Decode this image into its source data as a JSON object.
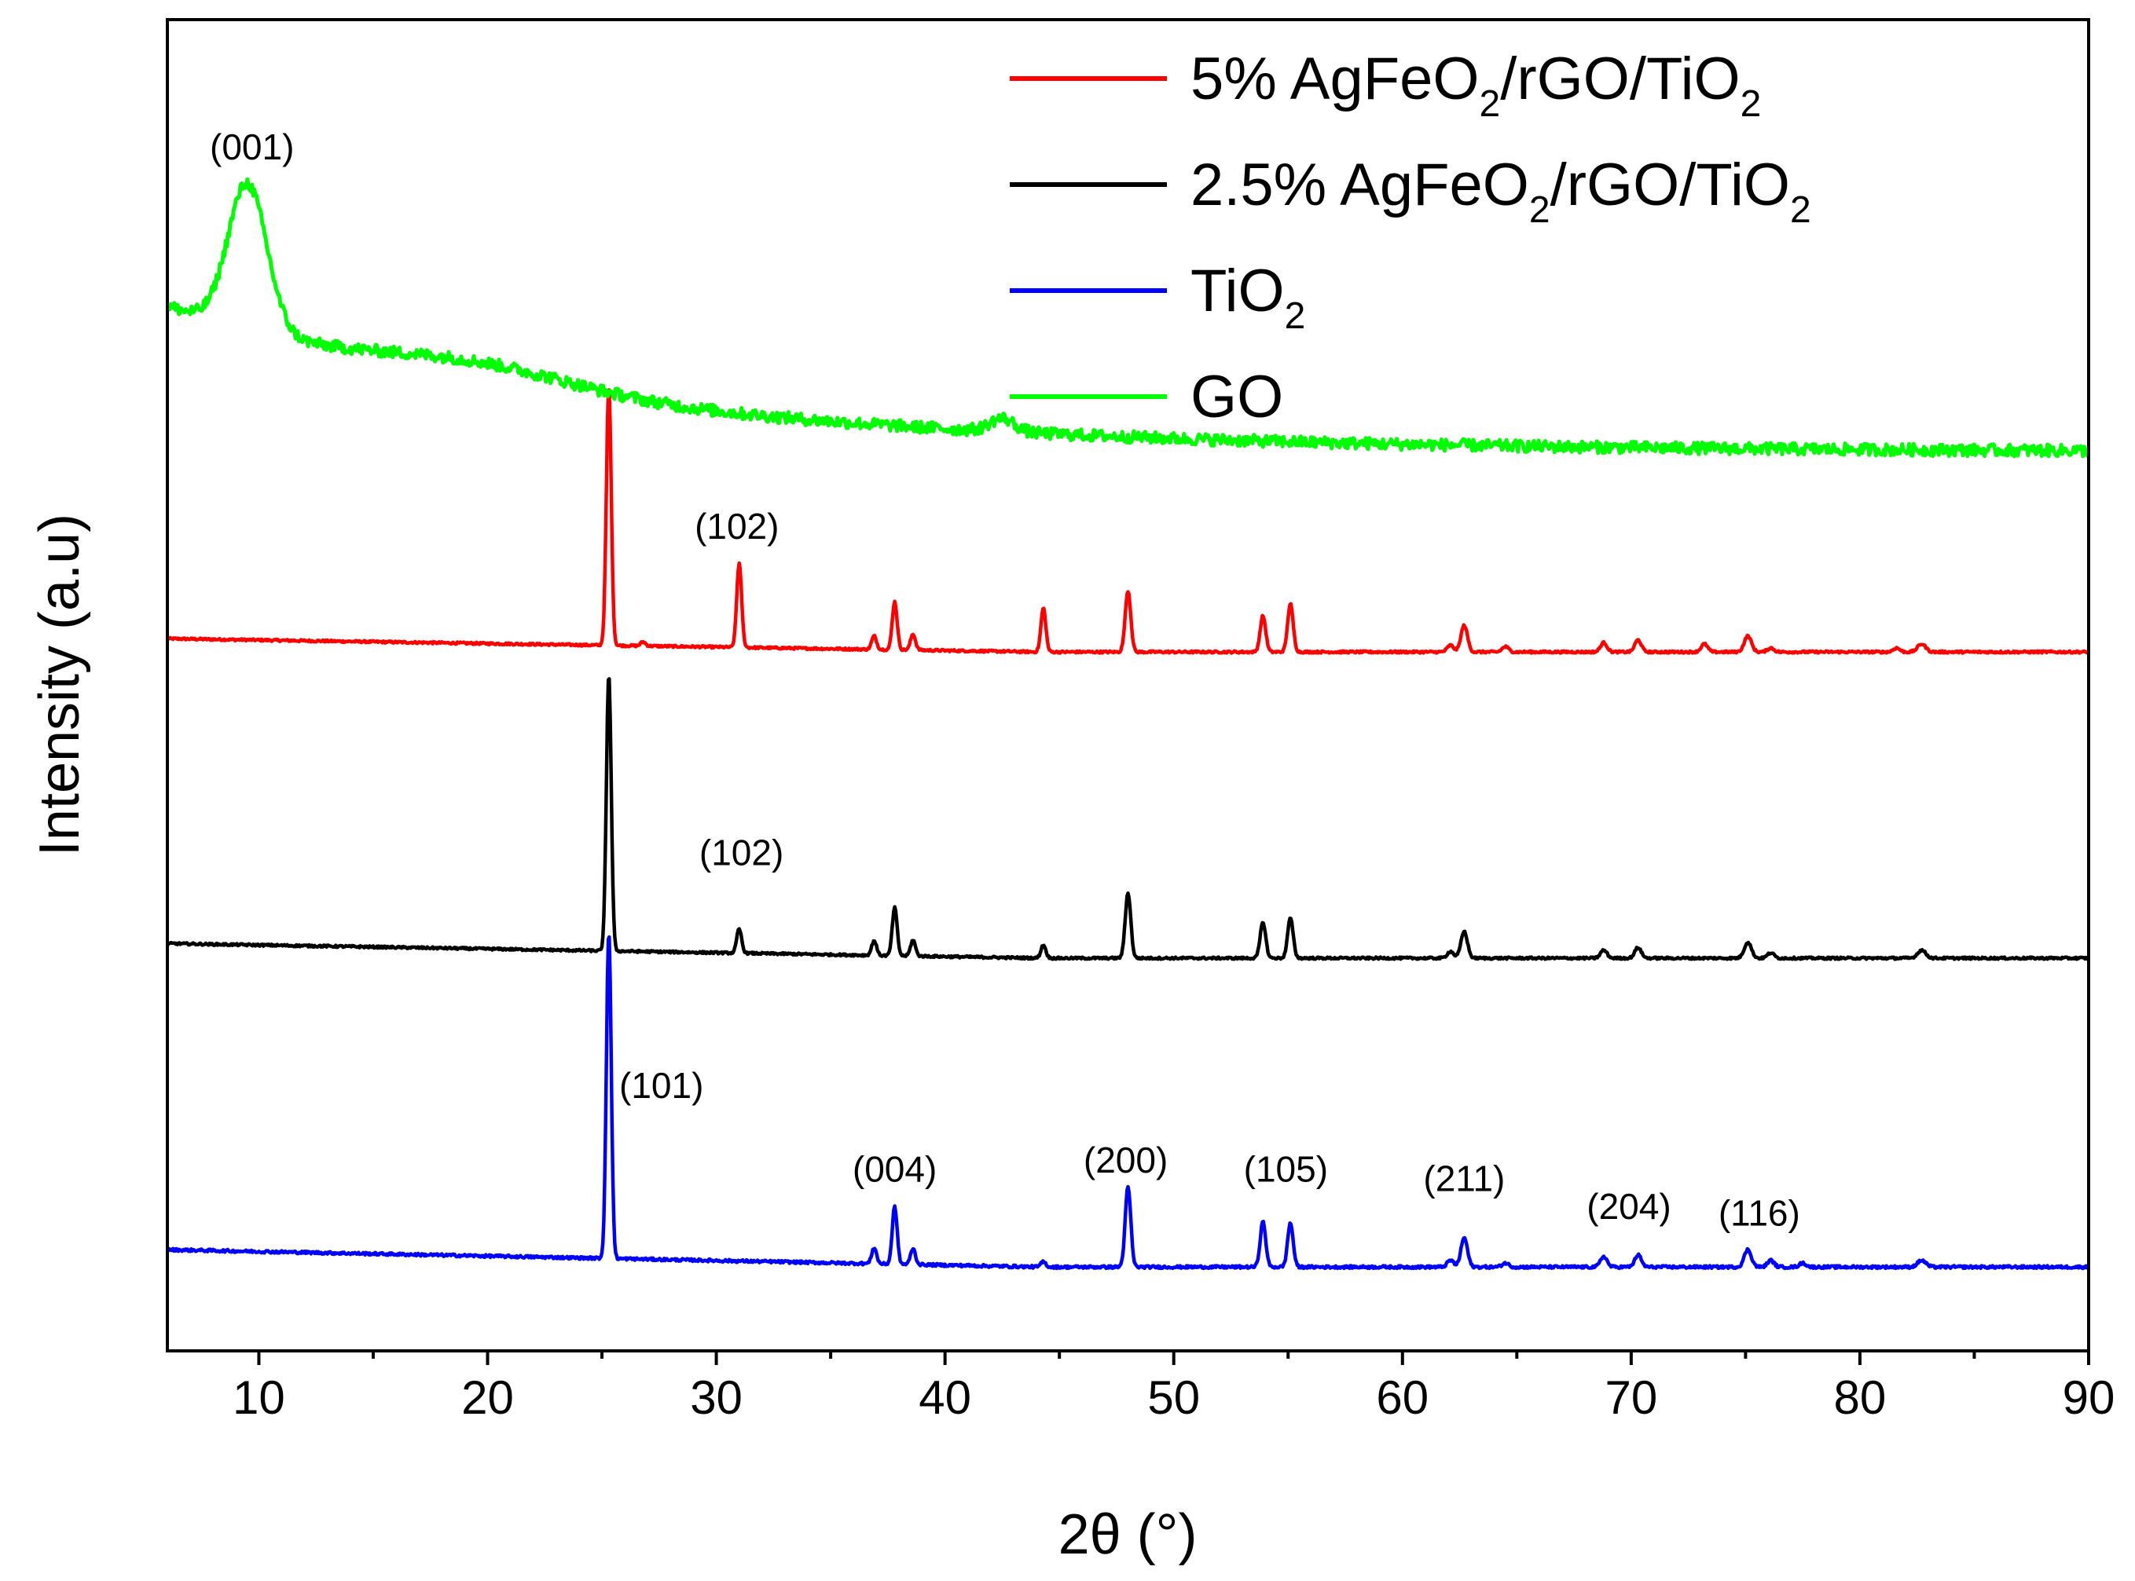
{
  "chart_data": {
    "type": "line",
    "title": "",
    "xlabel": "2θ (°)",
    "ylabel": "Intensity (a.u)",
    "xlim": [
      6,
      90
    ],
    "ylim": [
      0,
      100
    ],
    "xticks": [
      10,
      20,
      30,
      40,
      50,
      60,
      70,
      80,
      90
    ],
    "yticks_shown": false,
    "legend": {
      "position": "top-right"
    },
    "series": [
      {
        "name": "5% AgFeO2/rGO/TiO2",
        "label_parts": [
          "5% AgFeO",
          "2",
          "/rGO/TiO",
          "2"
        ],
        "color": "#ff0000",
        "baseline": 52.5,
        "baseline_start": 53.5,
        "peaks": [
          {
            "x": 25.3,
            "h": 19.5,
            "w": 0.15
          },
          {
            "x": 26.8,
            "h": 0.3,
            "w": 0.15
          },
          {
            "x": 31.0,
            "h": 6.3,
            "w": 0.15
          },
          {
            "x": 36.9,
            "h": 1.0,
            "w": 0.15
          },
          {
            "x": 37.8,
            "h": 3.6,
            "w": 0.15
          },
          {
            "x": 38.6,
            "h": 1.2,
            "w": 0.15
          },
          {
            "x": 44.3,
            "h": 3.3,
            "w": 0.15
          },
          {
            "x": 48.0,
            "h": 4.6,
            "w": 0.17
          },
          {
            "x": 53.9,
            "h": 2.7,
            "w": 0.17
          },
          {
            "x": 55.1,
            "h": 3.6,
            "w": 0.17
          },
          {
            "x": 62.1,
            "h": 0.5,
            "w": 0.2
          },
          {
            "x": 62.7,
            "h": 2.0,
            "w": 0.2
          },
          {
            "x": 64.5,
            "h": 0.4,
            "w": 0.2
          },
          {
            "x": 68.8,
            "h": 0.7,
            "w": 0.2
          },
          {
            "x": 70.3,
            "h": 0.9,
            "w": 0.2
          },
          {
            "x": 73.2,
            "h": 0.6,
            "w": 0.2
          },
          {
            "x": 75.1,
            "h": 1.2,
            "w": 0.22
          },
          {
            "x": 76.1,
            "h": 0.3,
            "w": 0.2
          },
          {
            "x": 81.6,
            "h": 0.3,
            "w": 0.2
          },
          {
            "x": 82.7,
            "h": 0.6,
            "w": 0.25
          }
        ],
        "noise": 0.08
      },
      {
        "name": "2.5% AgFeO2/rGO/TiO2",
        "label_parts": [
          "2.5% AgFeO",
          "2",
          "/rGO/TiO",
          "2"
        ],
        "color": "#000000",
        "baseline": 29.5,
        "baseline_start": 30.6,
        "peaks": [
          {
            "x": 25.3,
            "h": 20.8,
            "w": 0.15
          },
          {
            "x": 31.0,
            "h": 1.8,
            "w": 0.15
          },
          {
            "x": 36.9,
            "h": 1.1,
            "w": 0.15
          },
          {
            "x": 37.8,
            "h": 3.6,
            "w": 0.15
          },
          {
            "x": 38.6,
            "h": 1.2,
            "w": 0.15
          },
          {
            "x": 44.3,
            "h": 1.0,
            "w": 0.15
          },
          {
            "x": 48.0,
            "h": 4.9,
            "w": 0.17
          },
          {
            "x": 53.9,
            "h": 2.7,
            "w": 0.17
          },
          {
            "x": 55.1,
            "h": 3.0,
            "w": 0.17
          },
          {
            "x": 62.1,
            "h": 0.5,
            "w": 0.2
          },
          {
            "x": 62.7,
            "h": 2.0,
            "w": 0.2
          },
          {
            "x": 68.8,
            "h": 0.6,
            "w": 0.2
          },
          {
            "x": 70.3,
            "h": 0.8,
            "w": 0.2
          },
          {
            "x": 75.1,
            "h": 1.2,
            "w": 0.22
          },
          {
            "x": 76.1,
            "h": 0.4,
            "w": 0.2
          },
          {
            "x": 82.7,
            "h": 0.6,
            "w": 0.25
          }
        ],
        "noise": 0.08
      },
      {
        "name": "TiO2",
        "label_parts": [
          "TiO",
          "2",
          "",
          ""
        ],
        "color": "#0000ff",
        "baseline": 6.3,
        "baseline_start": 7.6,
        "peaks": [
          {
            "x": 25.3,
            "h": 24.5,
            "w": 0.15
          },
          {
            "x": 36.9,
            "h": 1.2,
            "w": 0.15
          },
          {
            "x": 37.8,
            "h": 4.3,
            "w": 0.15
          },
          {
            "x": 38.6,
            "h": 1.2,
            "w": 0.15
          },
          {
            "x": 44.3,
            "h": 0.4,
            "w": 0.15
          },
          {
            "x": 48.0,
            "h": 6.0,
            "w": 0.17
          },
          {
            "x": 53.9,
            "h": 3.4,
            "w": 0.17
          },
          {
            "x": 55.1,
            "h": 3.3,
            "w": 0.17
          },
          {
            "x": 62.1,
            "h": 0.5,
            "w": 0.2
          },
          {
            "x": 62.7,
            "h": 2.2,
            "w": 0.2
          },
          {
            "x": 64.5,
            "h": 0.3,
            "w": 0.2
          },
          {
            "x": 68.8,
            "h": 0.8,
            "w": 0.2
          },
          {
            "x": 70.3,
            "h": 0.9,
            "w": 0.2
          },
          {
            "x": 75.1,
            "h": 1.3,
            "w": 0.22
          },
          {
            "x": 76.1,
            "h": 0.5,
            "w": 0.2
          },
          {
            "x": 77.5,
            "h": 0.3,
            "w": 0.2
          },
          {
            "x": 82.7,
            "h": 0.5,
            "w": 0.25
          }
        ],
        "noise": 0.1
      },
      {
        "name": "GO",
        "label_parts": [
          "GO",
          "",
          "",
          ""
        ],
        "color": "#00ff00",
        "baseline": 67.5,
        "baseline_start": 78.5,
        "broad": [
          {
            "x": 9.5,
            "h": 11.0,
            "w": 0.8
          },
          {
            "x": 19.5,
            "h": 1.5,
            "w": 4.0
          },
          {
            "x": 42.5,
            "h": 1.0,
            "w": 0.5
          }
        ],
        "noise": 0.45
      }
    ],
    "annotations": [
      {
        "text": "(001)",
        "x": 9.7,
        "y": 89.5
      },
      {
        "text": "(102)",
        "x": 30.9,
        "y": 61.0
      },
      {
        "text": "(102)",
        "x": 31.1,
        "y": 36.5
      },
      {
        "text": "(101)",
        "x": 27.6,
        "y": 19.0
      },
      {
        "text": "(004)",
        "x": 37.8,
        "y": 12.7
      },
      {
        "text": "(200)",
        "x": 47.9,
        "y": 13.4
      },
      {
        "text": "(105)",
        "x": 54.9,
        "y": 12.7
      },
      {
        "text": "(211)",
        "x": 62.7,
        "y": 12.0
      },
      {
        "text": "(204)",
        "x": 69.9,
        "y": 9.9
      },
      {
        "text": "(116)",
        "x": 75.6,
        "y": 9.4
      }
    ]
  }
}
